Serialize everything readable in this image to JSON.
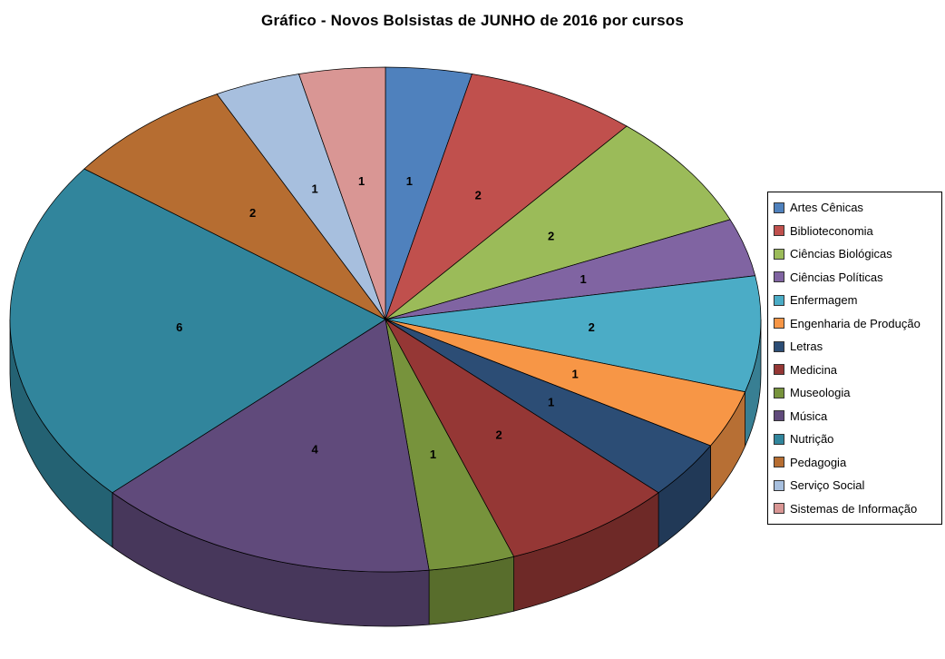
{
  "page": {
    "background_color": "#FFFFFF"
  },
  "chart_data": {
    "type": "pie",
    "style": "pie-3d",
    "title": "Gráfico - Novos Bolsistas de JUNHO de 2016 por cursos",
    "legend_position": "right",
    "data_labels": "value",
    "total": 27,
    "series": [
      {
        "label": "Artes Cênicas",
        "value": 1,
        "color": "#4F81BD"
      },
      {
        "label": "Biblioteconomia",
        "value": 2,
        "color": "#C0504D"
      },
      {
        "label": "Ciências Biológicas",
        "value": 2,
        "color": "#9BBB59"
      },
      {
        "label": "Ciências Políticas",
        "value": 1,
        "color": "#8064A2"
      },
      {
        "label": "Enfermagem",
        "value": 2,
        "color": "#4BACC6"
      },
      {
        "label": "Engenharia de Produção",
        "value": 1,
        "color": "#F79646"
      },
      {
        "label": "Letras",
        "value": 1,
        "color": "#2C4D75"
      },
      {
        "label": "Medicina",
        "value": 2,
        "color": "#953735"
      },
      {
        "label": "Museologia",
        "value": 1,
        "color": "#77933C"
      },
      {
        "label": "Música",
        "value": 4,
        "color": "#604A7B"
      },
      {
        "label": "Nutrição",
        "value": 6,
        "color": "#31859C"
      },
      {
        "label": "Pedagogia",
        "value": 2,
        "color": "#B66D31"
      },
      {
        "label": "Serviço Social",
        "value": 1,
        "color": "#A7BFDE"
      },
      {
        "label": "Sistemas de Informação",
        "value": 1,
        "color": "#D99694"
      }
    ]
  }
}
